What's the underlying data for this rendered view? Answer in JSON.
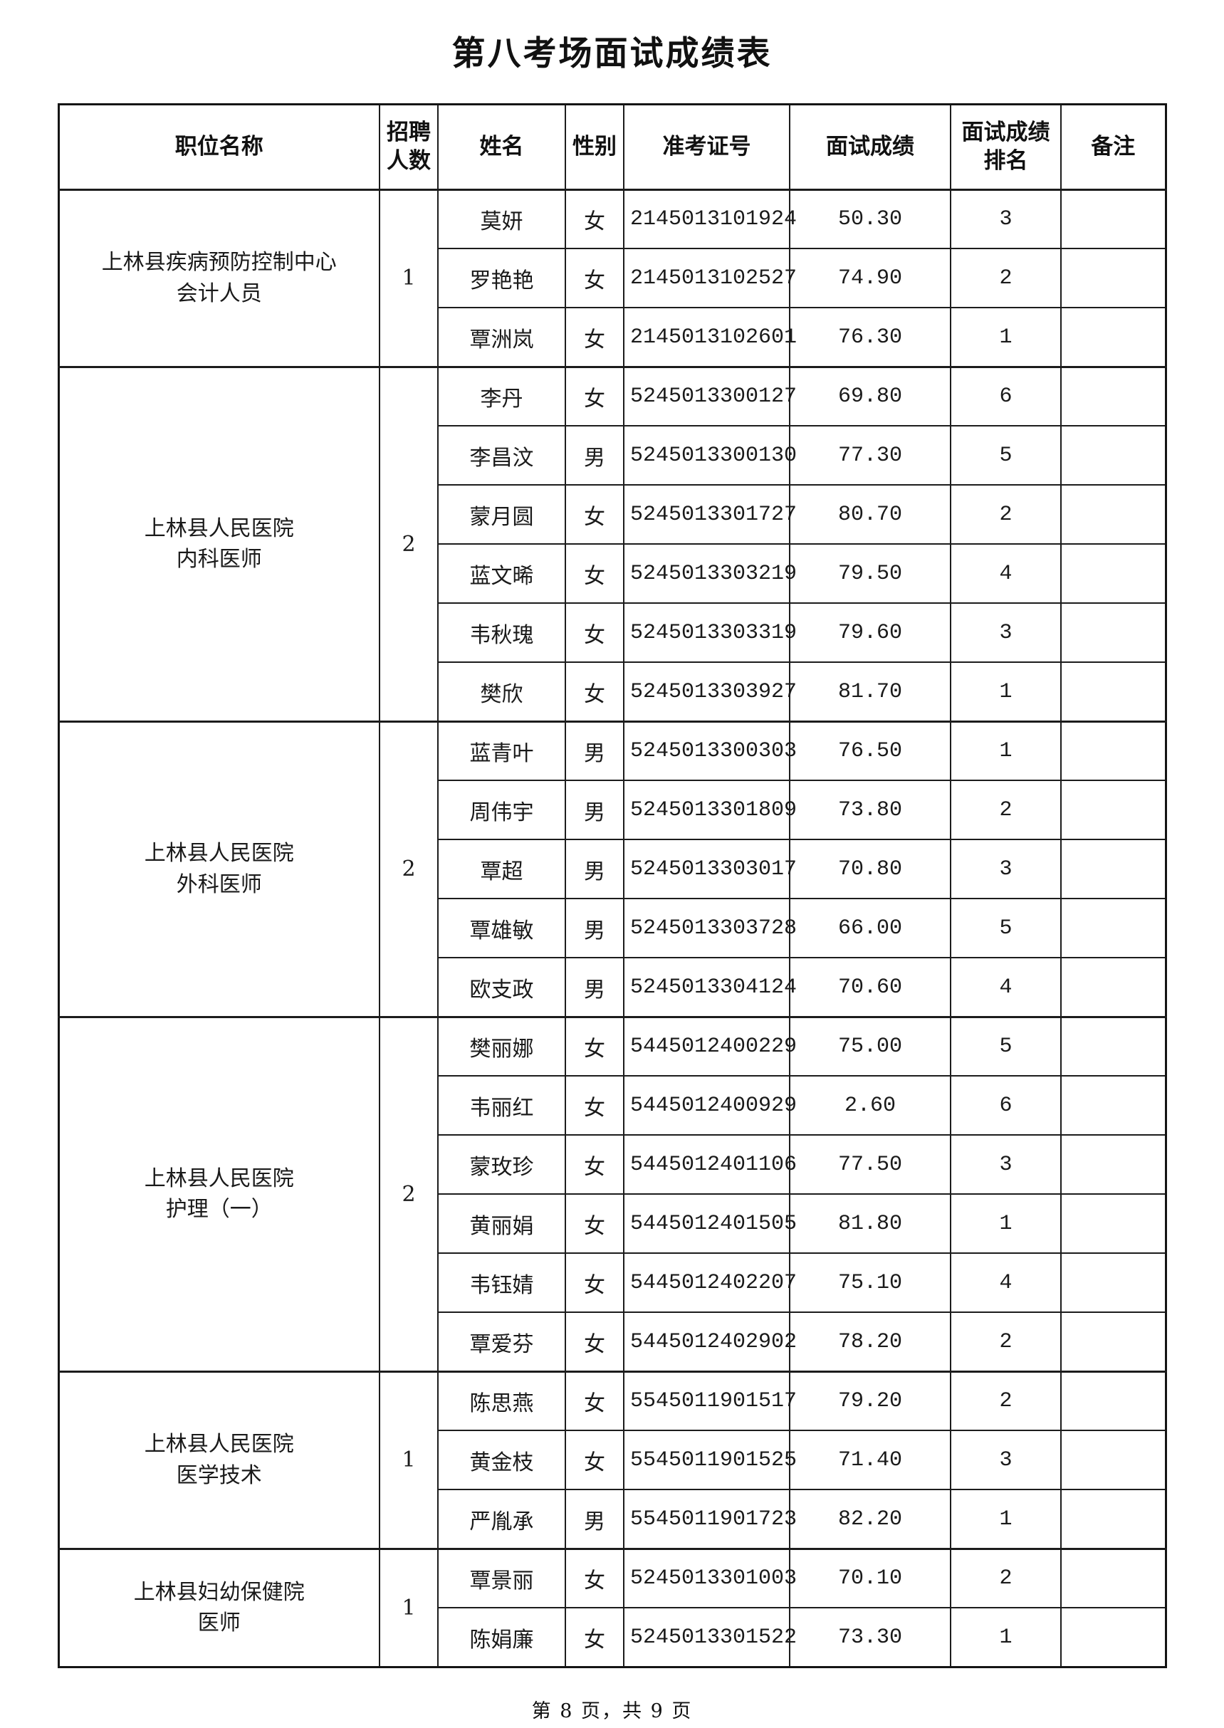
{
  "page": {
    "title": "第八考场面试成绩表",
    "footer": "第 8 页，共 9 页"
  },
  "table": {
    "headers": [
      "职位名称",
      "招聘人数",
      "姓名",
      "性别",
      "准考证号",
      "面试成绩",
      "面试成绩排名",
      "备注"
    ],
    "groups": [
      {
        "position_lines": [
          "上林县疾病预防控制中心",
          "会计人员"
        ],
        "recruit_count": "1",
        "rows": [
          {
            "name": "莫妍",
            "gender": "女",
            "ticket": "2145013101924",
            "score": "50.30",
            "rank": "3",
            "note": ""
          },
          {
            "name": "罗艳艳",
            "gender": "女",
            "ticket": "2145013102527",
            "score": "74.90",
            "rank": "2",
            "note": ""
          },
          {
            "name": "覃洲岚",
            "gender": "女",
            "ticket": "2145013102601",
            "score": "76.30",
            "rank": "1",
            "note": ""
          }
        ]
      },
      {
        "position_lines": [
          "上林县人民医院",
          "内科医师"
        ],
        "recruit_count": "2",
        "rows": [
          {
            "name": "李丹",
            "gender": "女",
            "ticket": "5245013300127",
            "score": "69.80",
            "rank": "6",
            "note": ""
          },
          {
            "name": "李昌汶",
            "gender": "男",
            "ticket": "5245013300130",
            "score": "77.30",
            "rank": "5",
            "note": ""
          },
          {
            "name": "蒙月圆",
            "gender": "女",
            "ticket": "5245013301727",
            "score": "80.70",
            "rank": "2",
            "note": ""
          },
          {
            "name": "蓝文晞",
            "gender": "女",
            "ticket": "5245013303219",
            "score": "79.50",
            "rank": "4",
            "note": ""
          },
          {
            "name": "韦秋瑰",
            "gender": "女",
            "ticket": "5245013303319",
            "score": "79.60",
            "rank": "3",
            "note": ""
          },
          {
            "name": "樊欣",
            "gender": "女",
            "ticket": "5245013303927",
            "score": "81.70",
            "rank": "1",
            "note": ""
          }
        ]
      },
      {
        "position_lines": [
          "上林县人民医院",
          "外科医师"
        ],
        "recruit_count": "2",
        "rows": [
          {
            "name": "蓝青叶",
            "gender": "男",
            "ticket": "5245013300303",
            "score": "76.50",
            "rank": "1",
            "note": ""
          },
          {
            "name": "周伟宇",
            "gender": "男",
            "ticket": "5245013301809",
            "score": "73.80",
            "rank": "2",
            "note": ""
          },
          {
            "name": "覃超",
            "gender": "男",
            "ticket": "5245013303017",
            "score": "70.80",
            "rank": "3",
            "note": ""
          },
          {
            "name": "覃雄敏",
            "gender": "男",
            "ticket": "5245013303728",
            "score": "66.00",
            "rank": "5",
            "note": ""
          },
          {
            "name": "欧支政",
            "gender": "男",
            "ticket": "5245013304124",
            "score": "70.60",
            "rank": "4",
            "note": ""
          }
        ]
      },
      {
        "position_lines": [
          "上林县人民医院",
          "护理（一）"
        ],
        "recruit_count": "2",
        "rows": [
          {
            "name": "樊丽娜",
            "gender": "女",
            "ticket": "5445012400229",
            "score": "75.00",
            "rank": "5",
            "note": ""
          },
          {
            "name": "韦丽红",
            "gender": "女",
            "ticket": "5445012400929",
            "score": "2.60",
            "rank": "6",
            "note": ""
          },
          {
            "name": "蒙玫珍",
            "gender": "女",
            "ticket": "5445012401106",
            "score": "77.50",
            "rank": "3",
            "note": ""
          },
          {
            "name": "黄丽娟",
            "gender": "女",
            "ticket": "5445012401505",
            "score": "81.80",
            "rank": "1",
            "note": ""
          },
          {
            "name": "韦钰婧",
            "gender": "女",
            "ticket": "5445012402207",
            "score": "75.10",
            "rank": "4",
            "note": ""
          },
          {
            "name": "覃爱芬",
            "gender": "女",
            "ticket": "5445012402902",
            "score": "78.20",
            "rank": "2",
            "note": ""
          }
        ]
      },
      {
        "position_lines": [
          "上林县人民医院",
          "医学技术"
        ],
        "recruit_count": "1",
        "rows": [
          {
            "name": "陈思燕",
            "gender": "女",
            "ticket": "5545011901517",
            "score": "79.20",
            "rank": "2",
            "note": ""
          },
          {
            "name": "黄金枝",
            "gender": "女",
            "ticket": "5545011901525",
            "score": "71.40",
            "rank": "3",
            "note": ""
          },
          {
            "name": "严胤承",
            "gender": "男",
            "ticket": "5545011901723",
            "score": "82.20",
            "rank": "1",
            "note": ""
          }
        ]
      },
      {
        "position_lines": [
          "上林县妇幼保健院",
          "医师"
        ],
        "recruit_count": "1",
        "rows": [
          {
            "name": "覃景丽",
            "gender": "女",
            "ticket": "5245013301003",
            "score": "70.10",
            "rank": "2",
            "note": ""
          },
          {
            "name": "陈娟廉",
            "gender": "女",
            "ticket": "5245013301522",
            "score": "73.30",
            "rank": "1",
            "note": ""
          }
        ]
      }
    ]
  }
}
